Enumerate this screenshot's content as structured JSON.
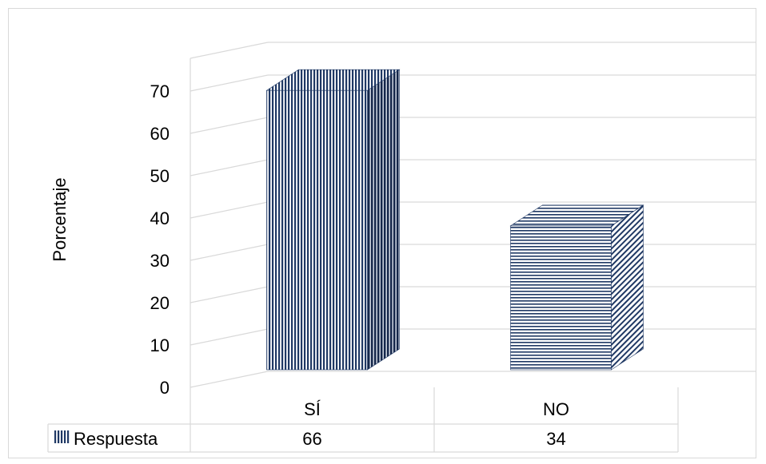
{
  "chart_data": {
    "type": "bar",
    "categories": [
      "SÍ",
      "NO"
    ],
    "series": [
      {
        "name": "Respuesta",
        "values": [
          66,
          34
        ]
      }
    ],
    "title": "",
    "xlabel": "",
    "ylabel": "Porcentaje",
    "ylim": [
      0,
      70
    ],
    "yticks": [
      0,
      10,
      20,
      30,
      40,
      50,
      60,
      70
    ],
    "grid": true,
    "legend": "data-table",
    "style": "3d-column",
    "colors": {
      "bar": "#1f3864",
      "grid": "#d9d9d9"
    },
    "patterns": [
      "vertical-stripes",
      "horizontal-stripes"
    ]
  },
  "data_table": {
    "legend_label": "Respuesta",
    "values": [
      "66",
      "34"
    ]
  }
}
